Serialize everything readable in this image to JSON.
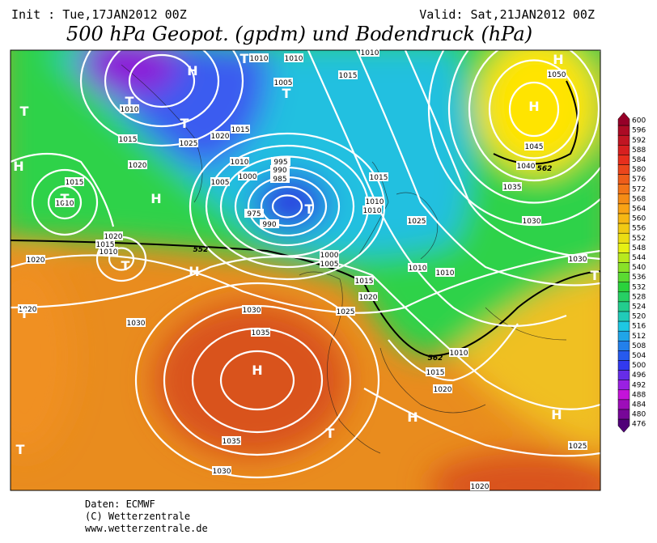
{
  "header": {
    "init": "Init : Tue,17JAN2012 00Z",
    "valid": "Valid: Sat,21JAN2012 00Z",
    "title": "500 hPa Geopot. (gpdm) und Bodendruck (hPa)"
  },
  "colorbar": {
    "levels": [
      600,
      596,
      592,
      588,
      584,
      580,
      576,
      572,
      568,
      564,
      560,
      556,
      552,
      548,
      544,
      540,
      536,
      532,
      528,
      524,
      520,
      516,
      512,
      508,
      504,
      500,
      496,
      492,
      488,
      484,
      480,
      476
    ]
  },
  "isobar_labels": [
    1010,
    1010,
    1010,
    1005,
    1015,
    1010,
    1015,
    1025,
    1020,
    1015,
    1020,
    1010,
    1000,
    1005,
    995,
    990,
    985,
    975,
    990,
    1015,
    1010,
    1020,
    1015,
    1010,
    1020,
    1000,
    1005,
    1015,
    1020,
    1025,
    1015,
    1010,
    1010,
    1025,
    1010,
    1010,
    1050,
    1045,
    1040,
    1035,
    1030,
    1030,
    1020,
    1030,
    1030,
    1035,
    1035,
    1030,
    1010,
    1015,
    1020,
    1025,
    1020
  ],
  "geopotential_labels": [
    552,
    562,
    562
  ],
  "pressure_centers": [
    "T",
    "H",
    "T",
    "H",
    "T",
    "H",
    "T",
    "T",
    "H",
    "T",
    "H",
    "H",
    "T",
    "T",
    "T",
    "H",
    "T",
    "T",
    "H",
    "H",
    "T"
  ],
  "footer": [
    "Daten: ECMWF",
    "(C) Wetterzentrale",
    "www.wetterzentrale.de"
  ]
}
